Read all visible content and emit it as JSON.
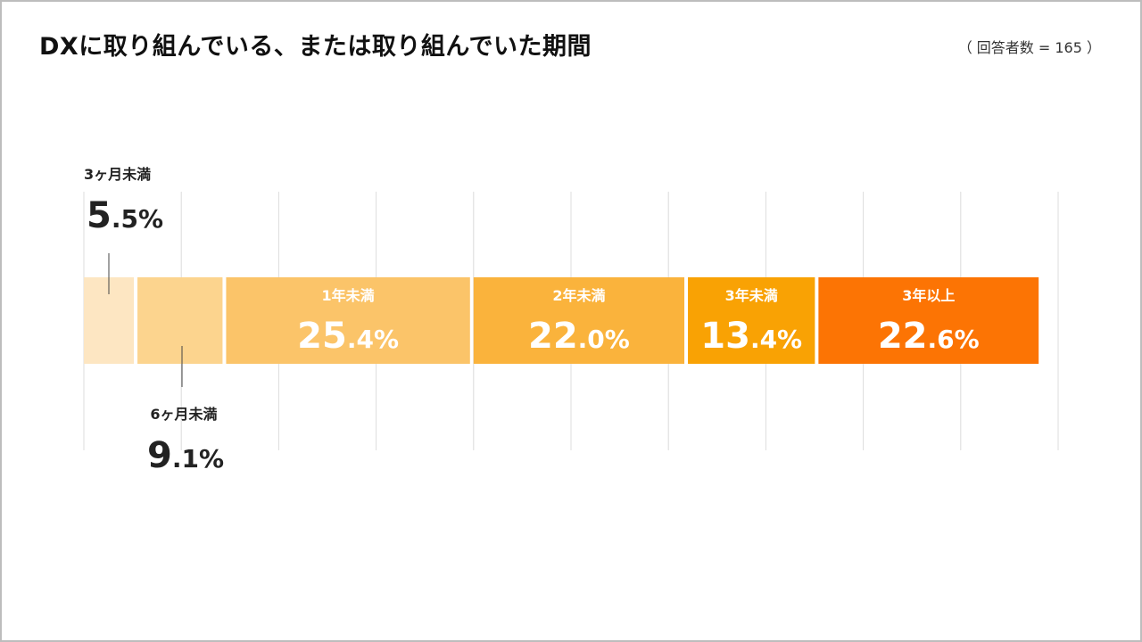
{
  "title": "DXに取り組んでいる、または取り組んでいた期間",
  "respondents": "（ 回答者数 = 165 ）",
  "chart_data": {
    "type": "bar",
    "orientation": "horizontal-stacked-100",
    "title": "DXに取り組んでいる、または取り組んでいた期間",
    "unit": "%",
    "categories": [
      "3ヶ月未満",
      "6ヶ月未満",
      "1年未満",
      "2年未満",
      "3年未満",
      "3年以上"
    ],
    "values": [
      5.5,
      9.1,
      25.4,
      22.0,
      13.4,
      22.6
    ],
    "value_labels": [
      "5.5%",
      "9.1%",
      "25.4%",
      "22.0%",
      "13.4%",
      "22.6%"
    ],
    "colors": [
      "#fde6c2",
      "#fcd48e",
      "#fbc469",
      "#fab33c",
      "#f9a204",
      "#fc7404"
    ],
    "xlim": [
      0,
      100
    ],
    "grid": true,
    "legend": "none"
  }
}
